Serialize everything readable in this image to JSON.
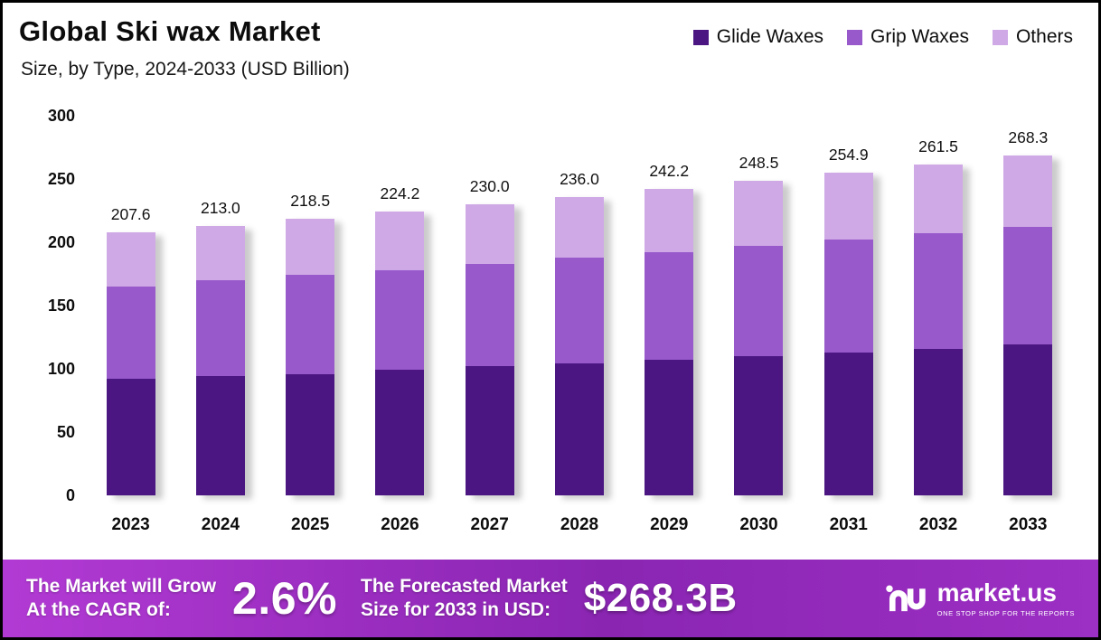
{
  "title": "Global Ski wax Market",
  "subtitle": "Size, by Type, 2024-2033 (USD Billion)",
  "legend": [
    {
      "label": "Glide Waxes",
      "color": "#4b1682"
    },
    {
      "label": "Grip Waxes",
      "color": "#9859cb"
    },
    {
      "label": "Others",
      "color": "#cfa9e6"
    }
  ],
  "chart_data": {
    "type": "bar",
    "stacked": true,
    "title": "Global Ski wax Market Size, by Type, 2024-2033 (USD Billion)",
    "categories": [
      "2023",
      "2024",
      "2025",
      "2026",
      "2027",
      "2028",
      "2029",
      "2030",
      "2031",
      "2032",
      "2033"
    ],
    "series": [
      {
        "name": "Glide Waxes",
        "color": "#4b1682",
        "values": [
          92,
          94,
          96,
          99,
          102,
          104,
          107,
          110,
          113,
          116,
          119
        ]
      },
      {
        "name": "Grip Waxes",
        "color": "#9859cb",
        "values": [
          73,
          76,
          78,
          79,
          81,
          84,
          85,
          87,
          89,
          91,
          93
        ]
      },
      {
        "name": "Others",
        "color": "#cfa9e6",
        "values": [
          42.6,
          43.0,
          44.5,
          46.2,
          47.0,
          48.0,
          50.2,
          51.5,
          52.9,
          54.5,
          56.3
        ]
      }
    ],
    "totals": [
      "207.6",
      "213.0",
      "218.5",
      "224.2",
      "230.0",
      "236.0",
      "242.2",
      "248.5",
      "254.9",
      "261.5",
      "268.3"
    ],
    "xlabel": "",
    "ylabel": "",
    "ylim": [
      0,
      300
    ],
    "yticks": [
      0,
      50,
      100,
      150,
      200,
      250,
      300
    ],
    "grid": false,
    "legend_position": "top-right"
  },
  "footer": {
    "cagr_label_line1": "The Market will Grow",
    "cagr_label_line2": "At the CAGR of:",
    "cagr_value": "2.6%",
    "forecast_label_line1": "The Forecasted Market",
    "forecast_label_line2": "Size for 2033 in USD:",
    "forecast_value": "$268.3B",
    "brand": "market.us",
    "brand_tagline": "ONE STOP SHOP FOR THE REPORTS"
  }
}
